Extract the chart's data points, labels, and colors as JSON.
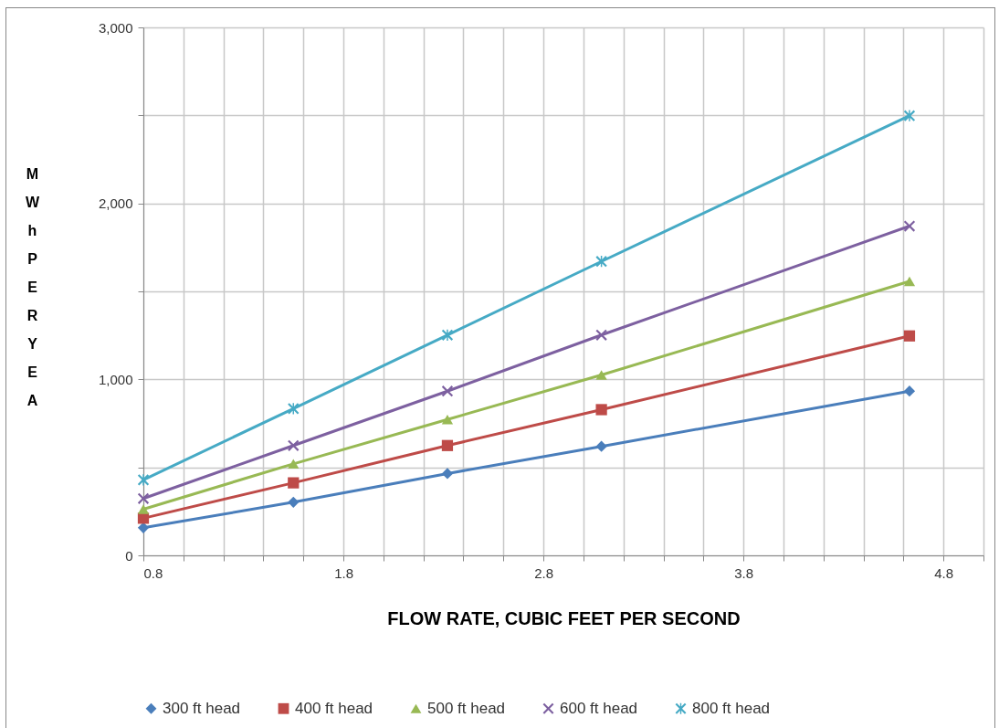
{
  "chart_data": {
    "type": "line",
    "xlabel": "FLOW RATE, CUBIC  FEET PER SECOND",
    "ylabel": "MWh PER YEA",
    "x": [
      0.8,
      1.55,
      2.32,
      3.09,
      4.63
    ],
    "series": [
      {
        "name": "300 ft head",
        "color": "#4a7ebb",
        "marker": "diamond",
        "values": [
          157,
          302,
          465,
          619,
          933
        ]
      },
      {
        "name": "400 ft head",
        "color": "#be4b48",
        "marker": "square",
        "values": [
          211,
          412,
          624,
          828,
          1247
        ]
      },
      {
        "name": "500 ft head",
        "color": "#98b954",
        "marker": "triangle",
        "values": [
          262,
          520,
          772,
          1025,
          1557
        ]
      },
      {
        "name": "600 ft head",
        "color": "#7d60a0",
        "marker": "cross",
        "values": [
          323,
          624,
          933,
          1252,
          1871
        ]
      },
      {
        "name": "800 ft head",
        "color": "#46aac5",
        "marker": "star",
        "values": [
          429,
          834,
          1252,
          1670,
          2498
        ]
      }
    ],
    "xlim": [
      0.8,
      5.0
    ],
    "xticks": [
      0.8,
      {
        "value": 1.0,
        "label": null
      },
      {
        "value": 1.2,
        "label": null
      },
      {
        "value": 1.4,
        "label": null
      },
      {
        "value": 1.6,
        "label": null
      },
      1.8,
      {
        "value": 2.0,
        "label": null
      },
      {
        "value": 2.2,
        "label": null
      },
      {
        "value": 2.4,
        "label": null
      },
      {
        "value": 2.6,
        "label": null
      },
      2.8,
      {
        "value": 3.0,
        "label": null
      },
      {
        "value": 3.2,
        "label": null
      },
      {
        "value": 3.4,
        "label": null
      },
      {
        "value": 3.6,
        "label": null
      },
      3.8,
      {
        "value": 4.0,
        "label": null
      },
      {
        "value": 4.2,
        "label": null
      },
      {
        "value": 4.4,
        "label": null
      },
      {
        "value": 4.6,
        "label": null
      },
      4.8,
      {
        "value": 5.0,
        "label": null
      }
    ],
    "ylim": [
      0,
      3000
    ],
    "yticks": [
      0,
      {
        "value": 500,
        "label": null
      },
      {
        "value": 1000,
        "label": "1,000"
      },
      {
        "value": 1500,
        "label": null
      },
      {
        "value": 2000,
        "label": "2,000"
      },
      {
        "value": 2500,
        "label": null
      },
      {
        "value": 3000,
        "label": "3,000"
      }
    ],
    "grid": true,
    "legend": "bottom",
    "line_style": "solid"
  }
}
